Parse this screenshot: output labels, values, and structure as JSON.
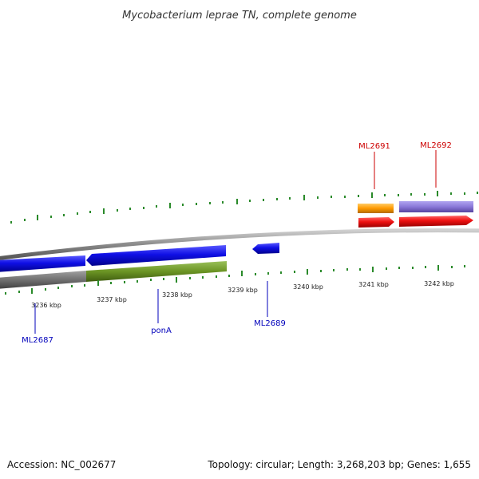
{
  "title": "Mycobacterium leprae TN, complete genome",
  "accession_text": "Accession: NC_002677",
  "summary_text": "Topology: circular; Length: 3,268,203 bp; Genes: 1,655",
  "colors": {
    "backbone": "#8a8a8a",
    "tick": "#2a8a2a",
    "forward_label": "#cc0000",
    "reverse_label": "#0000bb"
  },
  "scale": {
    "unit": "kbp",
    "ticks": [
      {
        "kbp": 3236,
        "label": "3236 kbp"
      },
      {
        "kbp": 3237,
        "label": "3237 kbp"
      },
      {
        "kbp": 3238,
        "label": "3238 kbp"
      },
      {
        "kbp": 3239,
        "label": "3239 kbp"
      },
      {
        "kbp": 3240,
        "label": "3240 kbp"
      },
      {
        "kbp": 3241,
        "label": "3241 kbp"
      },
      {
        "kbp": 3242,
        "label": "3242 kbp"
      }
    ]
  },
  "genes": [
    {
      "name": "ML2687",
      "strand": "reverse",
      "color": "#1010e0",
      "label_color": "#0000bb"
    },
    {
      "name": "ponA",
      "strand": "reverse",
      "color": "#1010e0",
      "label_color": "#0000bb"
    },
    {
      "name": "ML2689",
      "strand": "reverse",
      "color": "#1010e0",
      "label_color": "#0000bb"
    },
    {
      "name": "ML2691",
      "strand": "forward",
      "color": "#ee1111",
      "label_color": "#cc0000"
    },
    {
      "name": "ML2692",
      "strand": "forward",
      "color": "#ee1111",
      "label_color": "#cc0000"
    }
  ],
  "feature_tracks": [
    {
      "color": "#707070"
    },
    {
      "color": "#6b9424"
    },
    {
      "color": "#ff9900"
    },
    {
      "color": "#8a78d8"
    }
  ]
}
